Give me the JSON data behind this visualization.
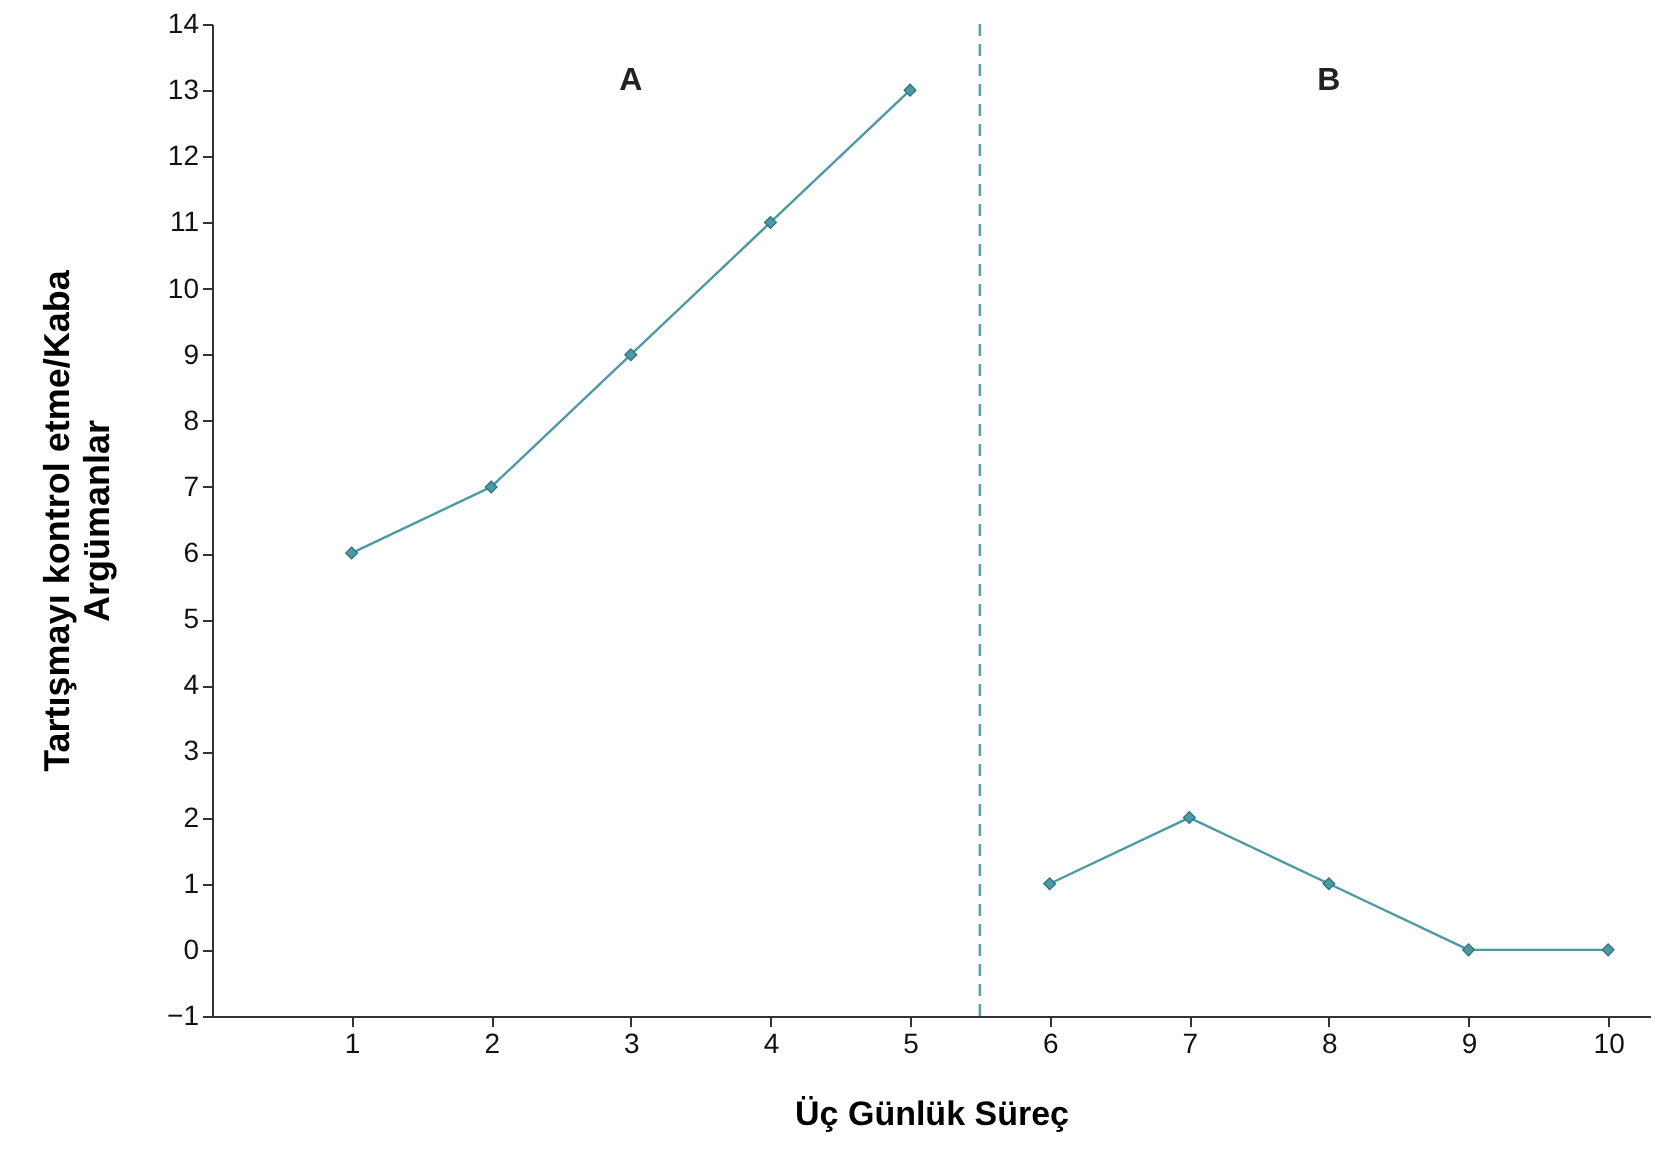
{
  "chart_data": {
    "type": "line",
    "xlabel": "Üç Günlük Süreç",
    "ylabel": "Tartışmayı kontrol etme/Kaba Argümanlar",
    "series": [
      {
        "color": "#4a9aa5",
        "x": [
          1,
          2,
          3,
          4,
          5
        ],
        "values": [
          6,
          7,
          9,
          11,
          13
        ]
      },
      {
        "color": "#4a9aa5",
        "x": [
          6,
          7,
          8,
          9,
          10
        ],
        "values": [
          1,
          2,
          1,
          0,
          0
        ]
      }
    ],
    "annotations": [
      "A",
      "B"
    ],
    "xlim": [
      0,
      10.3
    ],
    "xticks": [
      1,
      2,
      3,
      4,
      5,
      6,
      7,
      8,
      9,
      10
    ],
    "ylim": [
      -1,
      14
    ],
    "yticks": [
      {
        "value": -1,
        "label": "−1"
      },
      0,
      1,
      2,
      3,
      4,
      5,
      6,
      7,
      8,
      9,
      10,
      11,
      12,
      13,
      14
    ],
    "ref_lines": [
      {
        "axis": "x",
        "value": 5.5,
        "color": "#5aa0b0",
        "line_style": "dashed"
      }
    ],
    "marker": "diamond",
    "line_style": "solid",
    "grid": false,
    "legend": false
  }
}
